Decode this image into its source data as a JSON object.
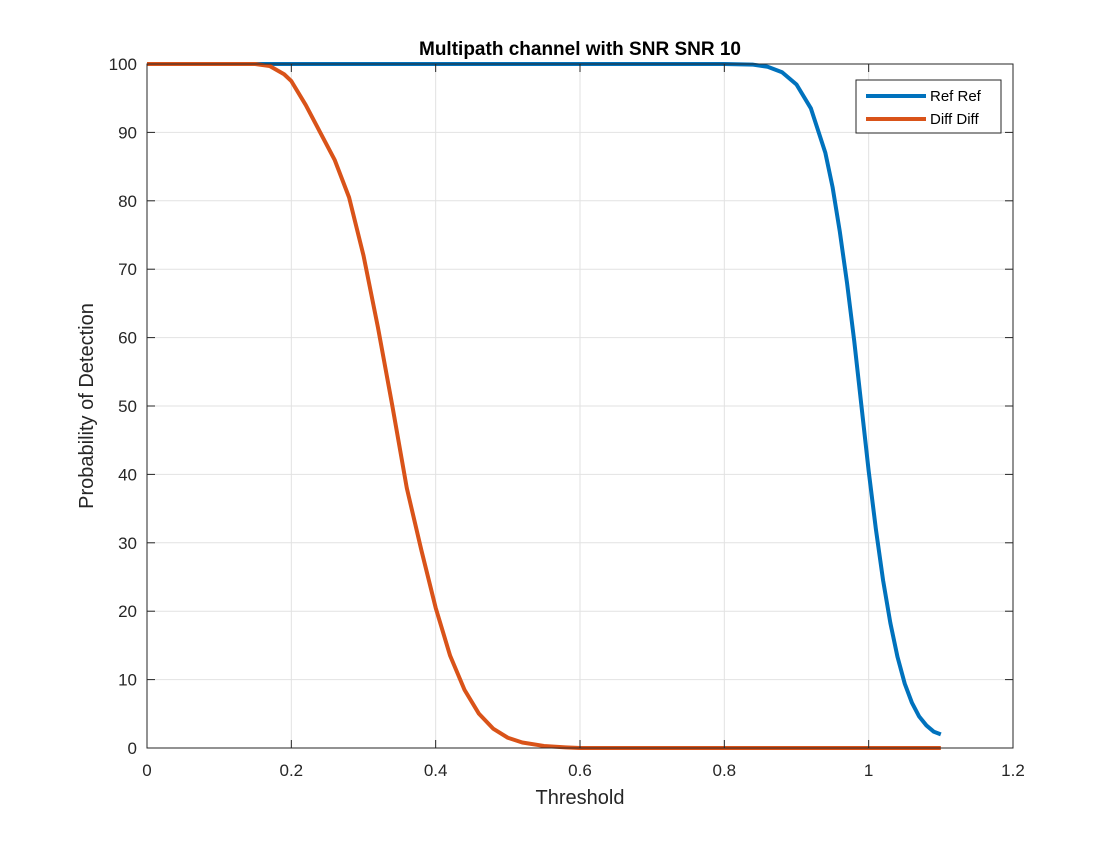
{
  "chart_data": {
    "type": "line",
    "title": "Multipath channel with SNR SNR 10",
    "xlabel": "Threshold",
    "ylabel": "Probability of Detection",
    "xlim": [
      0,
      1.2
    ],
    "ylim": [
      0,
      100
    ],
    "xticks": [
      0,
      0.2,
      0.4,
      0.6,
      0.8,
      1,
      1.2
    ],
    "xtick_labels": [
      "0",
      "0.2",
      "0.4",
      "0.6",
      "0.8",
      "1",
      "1.2"
    ],
    "yticks": [
      0,
      10,
      20,
      30,
      40,
      50,
      60,
      70,
      80,
      90,
      100
    ],
    "ytick_labels": [
      "0",
      "10",
      "20",
      "30",
      "40",
      "50",
      "60",
      "70",
      "80",
      "90",
      "100"
    ],
    "grid": true,
    "legend_position": "top-right",
    "series": [
      {
        "name": "Ref Ref",
        "color": "#0072BD",
        "x": [
          0,
          0.1,
          0.2,
          0.3,
          0.4,
          0.5,
          0.6,
          0.7,
          0.8,
          0.84,
          0.86,
          0.88,
          0.9,
          0.92,
          0.94,
          0.95,
          0.96,
          0.97,
          0.98,
          0.99,
          1.0,
          1.01,
          1.02,
          1.03,
          1.04,
          1.05,
          1.06,
          1.07,
          1.08,
          1.09,
          1.1
        ],
        "y": [
          100,
          100,
          100,
          100,
          100,
          100,
          100,
          100,
          100,
          99.9,
          99.6,
          98.8,
          97,
          93.5,
          87,
          82,
          75.5,
          68,
          59.5,
          50,
          40.5,
          32,
          24.5,
          18.3,
          13.3,
          9.4,
          6.6,
          4.6,
          3.3,
          2.4,
          2
        ]
      },
      {
        "name": "Diff Diff",
        "color": "#D95319",
        "x": [
          0,
          0.1,
          0.15,
          0.17,
          0.19,
          0.2,
          0.22,
          0.24,
          0.26,
          0.28,
          0.3,
          0.32,
          0.34,
          0.36,
          0.38,
          0.4,
          0.42,
          0.44,
          0.46,
          0.48,
          0.5,
          0.52,
          0.55,
          0.58,
          0.6,
          0.7,
          0.8,
          0.9,
          1.0,
          1.1
        ],
        "y": [
          100,
          100,
          100,
          99.7,
          98.5,
          97.5,
          94,
          90,
          86,
          80.5,
          72,
          61.5,
          50,
          38,
          29,
          20.5,
          13.5,
          8.5,
          5,
          2.8,
          1.5,
          0.8,
          0.3,
          0.1,
          0,
          0,
          0,
          0,
          0,
          0
        ]
      }
    ]
  }
}
